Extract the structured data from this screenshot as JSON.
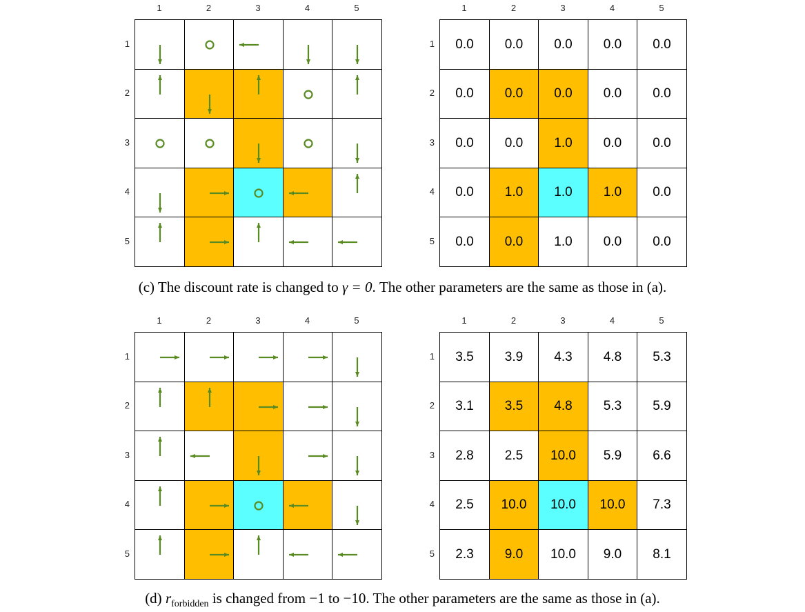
{
  "colors": {
    "forbidden": "#FFBF00",
    "target": "#5CFFFF",
    "arrow": "#5A8A22",
    "empty": "#FFFFFF"
  },
  "column_labels": [
    "1",
    "2",
    "3",
    "4",
    "5"
  ],
  "row_labels": [
    "1",
    "2",
    "3",
    "4",
    "5"
  ],
  "legend_cell_types": {
    "F": "forbidden",
    "T": "target",
    ".": "empty"
  },
  "panels": [
    {
      "id": "c",
      "cell_types": [
        [
          ".",
          ".",
          ".",
          ".",
          "."
        ],
        [
          ".",
          "F",
          "F",
          ".",
          "."
        ],
        [
          ".",
          ".",
          "F",
          ".",
          "."
        ],
        [
          ".",
          "F",
          "T",
          "F",
          "."
        ],
        [
          ".",
          "F",
          ".",
          ".",
          "."
        ]
      ],
      "policy": [
        [
          "down",
          "stay",
          "left",
          "down",
          "down"
        ],
        [
          "up",
          "down",
          "up",
          "stay",
          "up"
        ],
        [
          "stay",
          "stay",
          "down",
          "stay",
          "down"
        ],
        [
          "down",
          "right",
          "stay",
          "left",
          "up"
        ],
        [
          "up",
          "right",
          "up",
          "left",
          "left"
        ]
      ],
      "values": [
        [
          "0.0",
          "0.0",
          "0.0",
          "0.0",
          "0.0"
        ],
        [
          "0.0",
          "0.0",
          "0.0",
          "0.0",
          "0.0"
        ],
        [
          "0.0",
          "0.0",
          "1.0",
          "0.0",
          "0.0"
        ],
        [
          "0.0",
          "1.0",
          "1.0",
          "1.0",
          "0.0"
        ],
        [
          "0.0",
          "0.0",
          "1.0",
          "0.0",
          "0.0"
        ]
      ],
      "caption": {
        "pre": "(c) The discount rate is changed to ",
        "math": "γ = 0",
        "post": ". The other parameters are the same as those in (a)."
      }
    },
    {
      "id": "d",
      "cell_types": [
        [
          ".",
          ".",
          ".",
          ".",
          "."
        ],
        [
          ".",
          "F",
          "F",
          ".",
          "."
        ],
        [
          ".",
          ".",
          "F",
          ".",
          "."
        ],
        [
          ".",
          "F",
          "T",
          "F",
          "."
        ],
        [
          ".",
          "F",
          ".",
          ".",
          "."
        ]
      ],
      "policy": [
        [
          "right",
          "right",
          "right",
          "right",
          "down"
        ],
        [
          "up",
          "up",
          "right",
          "right",
          "down"
        ],
        [
          "up",
          "left",
          "down",
          "right",
          "down"
        ],
        [
          "up",
          "right",
          "stay",
          "left",
          "down"
        ],
        [
          "up",
          "right",
          "up",
          "left",
          "left"
        ]
      ],
      "values": [
        [
          "3.5",
          "3.9",
          "4.3",
          "4.8",
          "5.3"
        ],
        [
          "3.1",
          "3.5",
          "4.8",
          "5.3",
          "5.9"
        ],
        [
          "2.8",
          "2.5",
          "10.0",
          "5.9",
          "6.6"
        ],
        [
          "2.5",
          "10.0",
          "10.0",
          "10.0",
          "7.3"
        ],
        [
          "2.3",
          "9.0",
          "10.0",
          "9.0",
          "8.1"
        ]
      ],
      "caption": {
        "pre": "(d) ",
        "math": "r",
        "sub": "forbidden",
        "post": " is changed from −1 to −10. The other parameters are the same as those in (a)."
      }
    }
  ]
}
